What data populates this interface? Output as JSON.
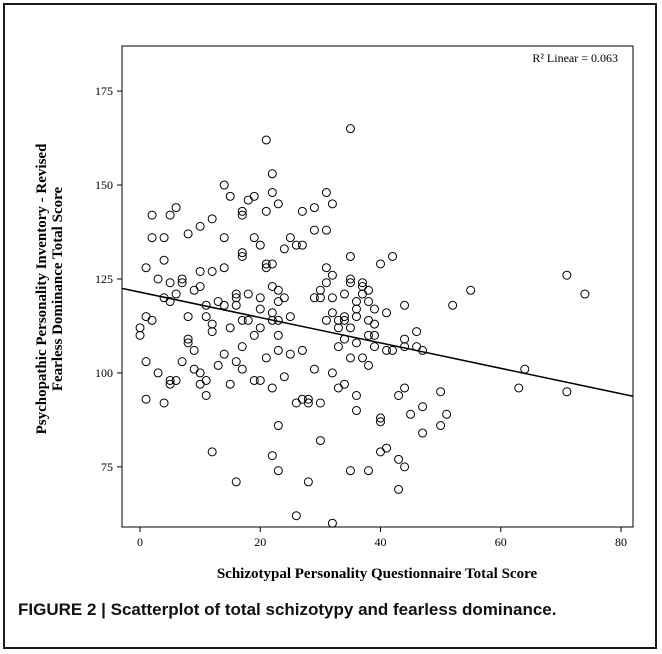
{
  "caption": "FIGURE 2 | Scatterplot of total schizotypy and fearless dominance.",
  "chart_data": {
    "type": "scatter",
    "xlabel": "Schizotypal Personality Questionnaire Total Score",
    "ylabel_line1": "Psychopathic Personality Inventory - Revised",
    "ylabel_line2": "Fearless Dominance Total Score",
    "annotation": "R² Linear = 0.063",
    "xlim": [
      -3,
      82
    ],
    "ylim": [
      59,
      187
    ],
    "xticks": [
      0,
      20,
      40,
      60,
      80
    ],
    "yticks": [
      75,
      100,
      125,
      150,
      175
    ],
    "fit_line": {
      "x": [
        -3,
        82
      ],
      "y": [
        122.5,
        93.8
      ]
    },
    "points": [
      [
        0,
        112
      ],
      [
        0,
        110
      ],
      [
        1,
        115
      ],
      [
        1,
        103
      ],
      [
        1,
        93
      ],
      [
        1,
        128
      ],
      [
        2,
        142
      ],
      [
        2,
        136
      ],
      [
        2,
        114
      ],
      [
        3,
        125
      ],
      [
        3,
        100
      ],
      [
        4,
        136
      ],
      [
        4,
        130
      ],
      [
        4,
        120
      ],
      [
        4,
        92
      ],
      [
        5,
        142
      ],
      [
        5,
        124
      ],
      [
        5,
        119
      ],
      [
        5,
        98
      ],
      [
        5,
        97
      ],
      [
        6,
        144
      ],
      [
        6,
        121
      ],
      [
        6,
        98
      ],
      [
        7,
        125
      ],
      [
        7,
        124
      ],
      [
        7,
        103
      ],
      [
        8,
        137
      ],
      [
        8,
        115
      ],
      [
        8,
        109
      ],
      [
        8,
        108
      ],
      [
        9,
        122
      ],
      [
        9,
        106
      ],
      [
        9,
        101
      ],
      [
        10,
        139
      ],
      [
        10,
        127
      ],
      [
        10,
        123
      ],
      [
        10,
        97
      ],
      [
        10,
        100
      ],
      [
        11,
        118
      ],
      [
        11,
        115
      ],
      [
        11,
        98
      ],
      [
        11,
        94
      ],
      [
        12,
        141
      ],
      [
        12,
        127
      ],
      [
        12,
        113
      ],
      [
        12,
        111
      ],
      [
        12,
        79
      ],
      [
        13,
        119
      ],
      [
        13,
        102
      ],
      [
        14,
        150
      ],
      [
        14,
        136
      ],
      [
        14,
        128
      ],
      [
        14,
        118
      ],
      [
        14,
        105
      ],
      [
        15,
        147
      ],
      [
        15,
        112
      ],
      [
        15,
        97
      ],
      [
        16,
        121
      ],
      [
        16,
        120
      ],
      [
        16,
        118
      ],
      [
        16,
        103
      ],
      [
        16,
        71
      ],
      [
        17,
        143
      ],
      [
        17,
        142
      ],
      [
        17,
        132
      ],
      [
        17,
        131
      ],
      [
        17,
        114
      ],
      [
        17,
        107
      ],
      [
        17,
        101
      ],
      [
        18,
        146
      ],
      [
        18,
        121
      ],
      [
        18,
        114
      ],
      [
        19,
        147
      ],
      [
        19,
        136
      ],
      [
        19,
        110
      ],
      [
        19,
        98
      ],
      [
        20,
        134
      ],
      [
        20,
        120
      ],
      [
        20,
        117
      ],
      [
        20,
        112
      ],
      [
        20,
        98
      ],
      [
        21,
        162
      ],
      [
        21,
        143
      ],
      [
        21,
        129
      ],
      [
        21,
        128
      ],
      [
        21,
        104
      ],
      [
        22,
        153
      ],
      [
        22,
        148
      ],
      [
        22,
        129
      ],
      [
        22,
        123
      ],
      [
        22,
        116
      ],
      [
        22,
        114
      ],
      [
        22,
        96
      ],
      [
        22,
        78
      ],
      [
        23,
        145
      ],
      [
        23,
        122
      ],
      [
        23,
        119
      ],
      [
        23,
        114
      ],
      [
        23,
        110
      ],
      [
        23,
        106
      ],
      [
        23,
        86
      ],
      [
        23,
        74
      ],
      [
        24,
        133
      ],
      [
        24,
        120
      ],
      [
        24,
        99
      ],
      [
        25,
        136
      ],
      [
        25,
        115
      ],
      [
        25,
        105
      ],
      [
        26,
        134
      ],
      [
        26,
        92
      ],
      [
        26,
        62
      ],
      [
        27,
        143
      ],
      [
        27,
        134
      ],
      [
        27,
        106
      ],
      [
        27,
        93
      ],
      [
        28,
        93
      ],
      [
        28,
        92
      ],
      [
        28,
        71
      ],
      [
        29,
        144
      ],
      [
        29,
        138
      ],
      [
        29,
        120
      ],
      [
        29,
        101
      ],
      [
        30,
        122
      ],
      [
        30,
        120
      ],
      [
        30,
        92
      ],
      [
        30,
        82
      ],
      [
        31,
        148
      ],
      [
        31,
        128
      ],
      [
        31,
        124
      ],
      [
        31,
        114
      ],
      [
        31,
        138
      ],
      [
        32,
        145
      ],
      [
        32,
        126
      ],
      [
        32,
        120
      ],
      [
        32,
        116
      ],
      [
        32,
        100
      ],
      [
        32,
        60
      ],
      [
        33,
        114
      ],
      [
        33,
        112
      ],
      [
        33,
        107
      ],
      [
        33,
        96
      ],
      [
        34,
        121
      ],
      [
        34,
        115
      ],
      [
        34,
        114
      ],
      [
        34,
        109
      ],
      [
        34,
        97
      ],
      [
        35,
        165
      ],
      [
        35,
        131
      ],
      [
        35,
        125
      ],
      [
        35,
        124
      ],
      [
        35,
        112
      ],
      [
        35,
        104
      ],
      [
        35,
        74
      ],
      [
        36,
        119
      ],
      [
        36,
        117
      ],
      [
        36,
        115
      ],
      [
        36,
        108
      ],
      [
        36,
        94
      ],
      [
        36,
        90
      ],
      [
        37,
        124
      ],
      [
        37,
        123
      ],
      [
        37,
        121
      ],
      [
        37,
        104
      ],
      [
        38,
        122
      ],
      [
        38,
        119
      ],
      [
        38,
        114
      ],
      [
        38,
        110
      ],
      [
        38,
        102
      ],
      [
        38,
        74
      ],
      [
        39,
        117
      ],
      [
        39,
        113
      ],
      [
        39,
        110
      ],
      [
        39,
        107
      ],
      [
        40,
        129
      ],
      [
        40,
        88
      ],
      [
        40,
        87
      ],
      [
        40,
        79
      ],
      [
        41,
        116
      ],
      [
        41,
        106
      ],
      [
        41,
        80
      ],
      [
        42,
        131
      ],
      [
        42,
        106
      ],
      [
        43,
        94
      ],
      [
        43,
        77
      ],
      [
        43,
        69
      ],
      [
        44,
        118
      ],
      [
        44,
        109
      ],
      [
        44,
        107
      ],
      [
        44,
        96
      ],
      [
        44,
        75
      ],
      [
        45,
        89
      ],
      [
        46,
        111
      ],
      [
        46,
        107
      ],
      [
        47,
        106
      ],
      [
        47,
        91
      ],
      [
        47,
        84
      ],
      [
        50,
        95
      ],
      [
        50,
        86
      ],
      [
        51,
        89
      ],
      [
        52,
        118
      ],
      [
        55,
        122
      ],
      [
        63,
        96
      ],
      [
        64,
        101
      ],
      [
        71,
        126
      ],
      [
        71,
        95
      ],
      [
        74,
        121
      ]
    ]
  }
}
